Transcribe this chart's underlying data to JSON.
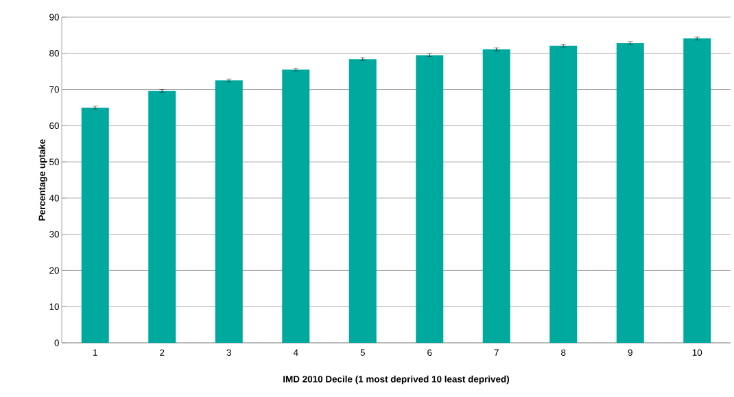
{
  "chart_data": {
    "type": "bar",
    "xlabel": "IMD 2010 Decile (1 most deprived 10 least deprived)",
    "ylabel": "Percentage uptake",
    "categories": [
      "1",
      "2",
      "3",
      "4",
      "5",
      "6",
      "7",
      "8",
      "9",
      "10"
    ],
    "values": [
      65.0,
      69.6,
      72.5,
      75.5,
      78.4,
      79.5,
      81.1,
      82.1,
      82.8,
      84.1
    ],
    "errors": [
      0.4,
      0.4,
      0.4,
      0.4,
      0.4,
      0.4,
      0.4,
      0.4,
      0.4,
      0.4
    ],
    "color": "#00a99d",
    "ylim": [
      0,
      90
    ],
    "yticks": [
      0,
      10,
      20,
      30,
      40,
      50,
      60,
      70,
      80,
      90
    ],
    "grid": "y"
  }
}
